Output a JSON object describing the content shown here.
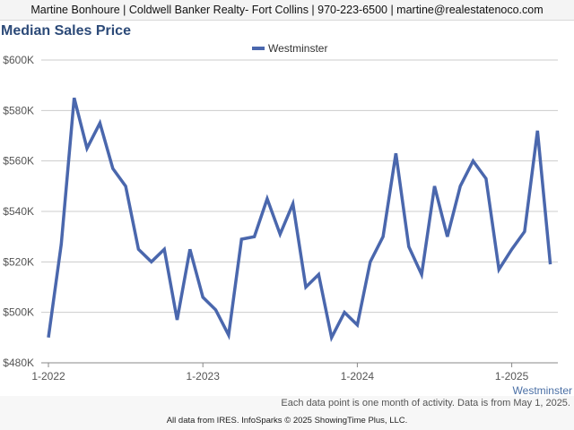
{
  "header": {
    "contact_line": "Martine Bonhoure | Coldwell Banker Realty- Fort Collins | 970-223-6500 | martine@realestatenoco.com"
  },
  "footer": {
    "note": "Each data point is one month of activity. Data is from May 1, 2025.",
    "source": "All data from IRES. InfoSparks © 2025 ShowingTime Plus, LLC."
  },
  "colors": {
    "series": "#4a67ad",
    "title": "#2c4a78",
    "grid": "#cccccc"
  },
  "chart_data": {
    "type": "line",
    "title": "Median Sales Price",
    "xlabel": "",
    "ylabel": "",
    "series_label": "Westminster",
    "legend_position": "top-center",
    "grid": true,
    "ylim": [
      480000,
      600000
    ],
    "yticks": [
      {
        "value": 480000,
        "label": "$480K"
      },
      {
        "value": 500000,
        "label": "$500K"
      },
      {
        "value": 520000,
        "label": "$520K"
      },
      {
        "value": 540000,
        "label": "$540K"
      },
      {
        "value": 560000,
        "label": "$560K"
      },
      {
        "value": 580000,
        "label": "$580K"
      },
      {
        "value": 600000,
        "label": "$600K"
      }
    ],
    "xticks": [
      {
        "month": "2022-01",
        "label": "1-2022"
      },
      {
        "month": "2023-01",
        "label": "1-2023"
      },
      {
        "month": "2024-01",
        "label": "1-2024"
      },
      {
        "month": "2025-01",
        "label": "1-2025"
      }
    ],
    "series": [
      {
        "name": "Westminster",
        "x": [
          "2022-01",
          "2022-02",
          "2022-03",
          "2022-04",
          "2022-05",
          "2022-06",
          "2022-07",
          "2022-08",
          "2022-09",
          "2022-10",
          "2022-11",
          "2022-12",
          "2023-01",
          "2023-02",
          "2023-03",
          "2023-04",
          "2023-05",
          "2023-06",
          "2023-07",
          "2023-08",
          "2023-09",
          "2023-10",
          "2023-11",
          "2023-12",
          "2024-01",
          "2024-02",
          "2024-03",
          "2024-04",
          "2024-05",
          "2024-06",
          "2024-07",
          "2024-08",
          "2024-09",
          "2024-10",
          "2024-11",
          "2024-12",
          "2025-01",
          "2025-02",
          "2025-03",
          "2025-04"
        ],
        "values": [
          490000,
          527000,
          585000,
          565000,
          575000,
          557000,
          550000,
          525000,
          520000,
          525000,
          497000,
          525000,
          506000,
          501000,
          491000,
          529000,
          530000,
          545000,
          531000,
          543000,
          510000,
          515000,
          490000,
          500000,
          495000,
          520000,
          530000,
          563000,
          526000,
          515000,
          550000,
          530000,
          550000,
          560000,
          553000,
          517000,
          525000,
          532000,
          572000,
          519000
        ]
      }
    ]
  }
}
